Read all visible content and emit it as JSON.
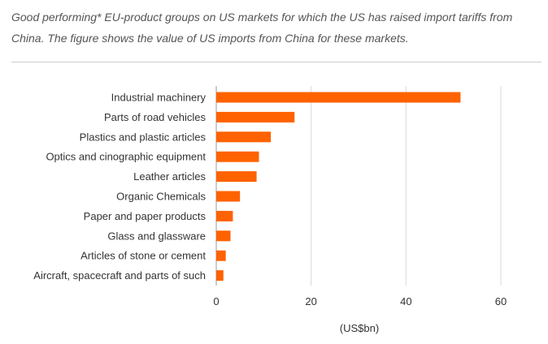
{
  "caption": "Good performing* EU-product groups on US markets for which the US has raised import tariffs from China. The figure shows the value of US imports from China for these markets.",
  "colors": {
    "bar": "#ff6200",
    "grid": "#d9d9d9",
    "axis": "#999999",
    "text": "#333333"
  },
  "chart_data": {
    "type": "bar",
    "orientation": "horizontal",
    "title": "",
    "xlabel": "(US$bn)",
    "ylabel": "",
    "xlim": [
      0,
      60
    ],
    "xticks": [
      0,
      20,
      40,
      60
    ],
    "categories": [
      "Industrial machinery",
      "Parts of road vehicles",
      "Plastics and plastic articles",
      "Optics and cinographic equipment",
      "Leather articles",
      "Organic Chemicals",
      "Paper and paper products",
      "Glass and glassware",
      "Articles of stone or cement",
      "Aircraft, spacecraft and parts of such"
    ],
    "values": [
      51.5,
      16.5,
      11.5,
      9.0,
      8.5,
      5.0,
      3.5,
      3.0,
      2.0,
      1.5
    ]
  }
}
